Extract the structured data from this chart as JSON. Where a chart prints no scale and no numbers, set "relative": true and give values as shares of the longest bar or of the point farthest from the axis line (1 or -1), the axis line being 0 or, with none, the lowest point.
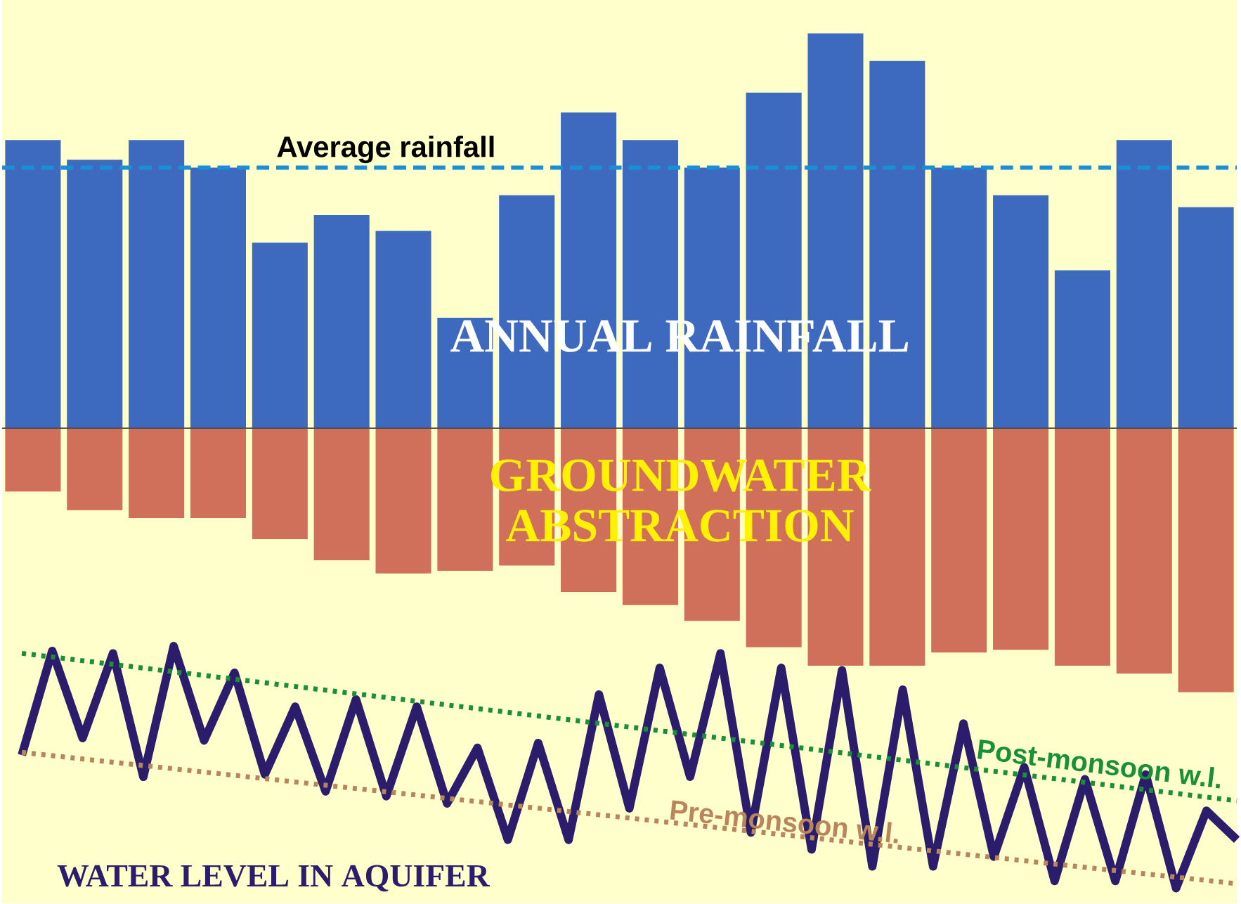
{
  "chart_data": [
    {
      "type": "bar",
      "relative": true,
      "categories": [
        null,
        null,
        null,
        null,
        null,
        null,
        null,
        null,
        null,
        null,
        null,
        null,
        null,
        null,
        null,
        null,
        null,
        null,
        null,
        null
      ],
      "series": [
        {
          "name": "ANNUAL RAINFALL",
          "color": "#3d69bf",
          "values": [
            0.73,
            0.68,
            0.73,
            0.66,
            0.47,
            0.54,
            0.5,
            0.28,
            0.59,
            0.8,
            0.73,
            0.66,
            0.85,
            1.0,
            0.93,
            0.66,
            0.59,
            0.4,
            0.73,
            0.56
          ]
        }
      ],
      "ref_lines": [
        {
          "axis": "y",
          "value": 0.66,
          "label": "Average rainfall",
          "color": "#1a8fd6",
          "line_style": "dashed"
        }
      ]
    },
    {
      "type": "bar",
      "relative": true,
      "categories": [
        null,
        null,
        null,
        null,
        null,
        null,
        null,
        null,
        null,
        null,
        null,
        null,
        null,
        null,
        null,
        null,
        null,
        null,
        null,
        null
      ],
      "series": [
        {
          "name": "GROUNDWATER ABSTRACTION",
          "color": "#d0705a",
          "values": [
            -0.24,
            -0.31,
            -0.34,
            -0.34,
            -0.42,
            -0.5,
            -0.55,
            -0.54,
            -0.52,
            -0.62,
            -0.67,
            -0.73,
            -0.83,
            -0.9,
            -0.9,
            -0.85,
            -0.84,
            -0.9,
            -0.93,
            -1.0
          ]
        }
      ]
    },
    {
      "type": "line",
      "relative": true,
      "categories": [
        null,
        null,
        null,
        null,
        null,
        null,
        null,
        null,
        null,
        null,
        null,
        null,
        null,
        null,
        null,
        null,
        null,
        null,
        null,
        null,
        null,
        null,
        null,
        null,
        null,
        null,
        null,
        null,
        null,
        null,
        null,
        null,
        null,
        null,
        null,
        null,
        null,
        null,
        null,
        null,
        null
      ],
      "series": [
        {
          "name": "WATER LEVEL IN AQUIFER",
          "color": "#2b1d6b",
          "values": [
            0.55,
            0.98,
            0.62,
            0.97,
            0.46,
            1.0,
            0.61,
            0.89,
            0.47,
            0.75,
            0.4,
            0.78,
            0.38,
            0.75,
            0.35,
            0.58,
            0.2,
            0.6,
            0.2,
            0.8,
            0.33,
            0.91,
            0.46,
            0.97,
            0.23,
            0.91,
            0.16,
            0.9,
            0.09,
            0.82,
            0.09,
            0.68,
            0.13,
            0.5,
            0.03,
            0.45,
            0.03,
            0.47,
            0.0,
            0.32,
            0.2
          ]
        }
      ]
    },
    {
      "type": "line",
      "relative": true,
      "categories": [
        null,
        null
      ],
      "series": [
        {
          "name": "Post-monsoon w.l.",
          "color": "#1a8f3a",
          "line_style": "dotted",
          "values": [
            1.0,
            0.36
          ]
        },
        {
          "name": "Pre-monsoon w.l.",
          "color": "#b8865a",
          "line_style": "dotted",
          "values": [
            0.57,
            0.0
          ]
        }
      ]
    }
  ]
}
